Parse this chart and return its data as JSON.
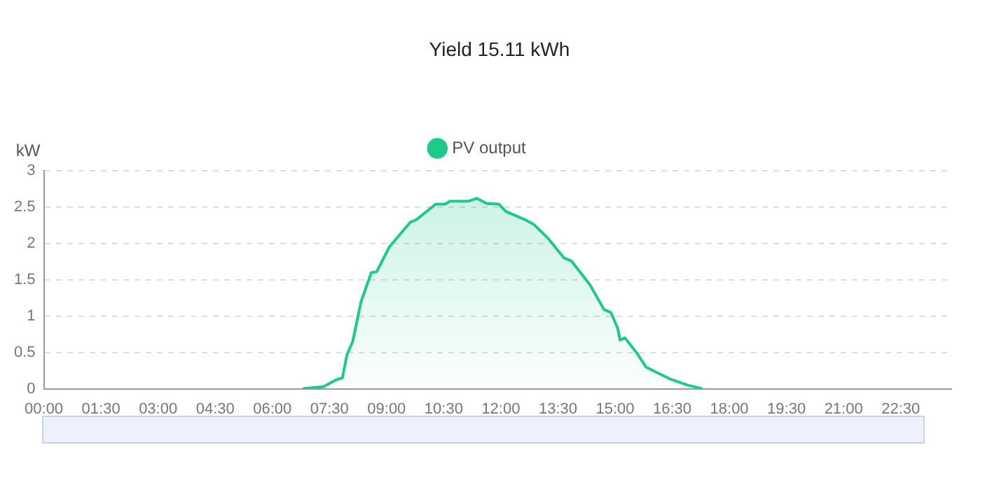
{
  "chart_data": {
    "type": "area",
    "title": "Yield 15.11 kWh",
    "ylabel": "kW",
    "xlim": [
      0,
      23.83
    ],
    "xticks": [
      {
        "value": 0,
        "label": "00:00"
      },
      {
        "value": 1.5,
        "label": "01:30"
      },
      {
        "value": 3,
        "label": "03:00"
      },
      {
        "value": 4.5,
        "label": "04:30"
      },
      {
        "value": 6,
        "label": "06:00"
      },
      {
        "value": 7.5,
        "label": "07:30"
      },
      {
        "value": 9,
        "label": "09:00"
      },
      {
        "value": 10.5,
        "label": "10:30"
      },
      {
        "value": 12,
        "label": "12:00"
      },
      {
        "value": 13.5,
        "label": "13:30"
      },
      {
        "value": 15,
        "label": "15:00"
      },
      {
        "value": 16.5,
        "label": "16:30"
      },
      {
        "value": 18,
        "label": "18:00"
      },
      {
        "value": 19.5,
        "label": "19:30"
      },
      {
        "value": 21,
        "label": "21:00"
      },
      {
        "value": 22.5,
        "label": "22:30"
      }
    ],
    "ylim": [
      0,
      3
    ],
    "yticks": [
      0,
      0.5,
      1,
      1.5,
      2,
      2.5,
      3
    ],
    "grid": "y",
    "legend": "top",
    "marker": "none",
    "line_style": "solid",
    "series": [
      {
        "name": "PV output",
        "color": "#1ec98a",
        "x": [
          6.8,
          7.35,
          7.66,
          7.84,
          7.96,
          8.11,
          8.33,
          8.6,
          8.74,
          9.07,
          9.44,
          9.62,
          9.79,
          10.29,
          10.54,
          10.66,
          11.15,
          11.37,
          11.63,
          11.95,
          12.13,
          12.62,
          12.87,
          13.24,
          13.66,
          13.85,
          14.34,
          14.71,
          14.89,
          15.07,
          15.13,
          15.26,
          15.56,
          15.81,
          16.11,
          16.42,
          16.9,
          17.3
        ],
        "values": [
          0,
          0.03,
          0.12,
          0.15,
          0.47,
          0.65,
          1.2,
          1.6,
          1.61,
          1.95,
          2.18,
          2.29,
          2.33,
          2.54,
          2.54,
          2.58,
          2.58,
          2.62,
          2.55,
          2.54,
          2.44,
          2.33,
          2.26,
          2.07,
          1.8,
          1.76,
          1.43,
          1.09,
          1.05,
          0.83,
          0.67,
          0.7,
          0.5,
          0.3,
          0.22,
          0.14,
          0.05,
          0
        ]
      }
    ]
  }
}
